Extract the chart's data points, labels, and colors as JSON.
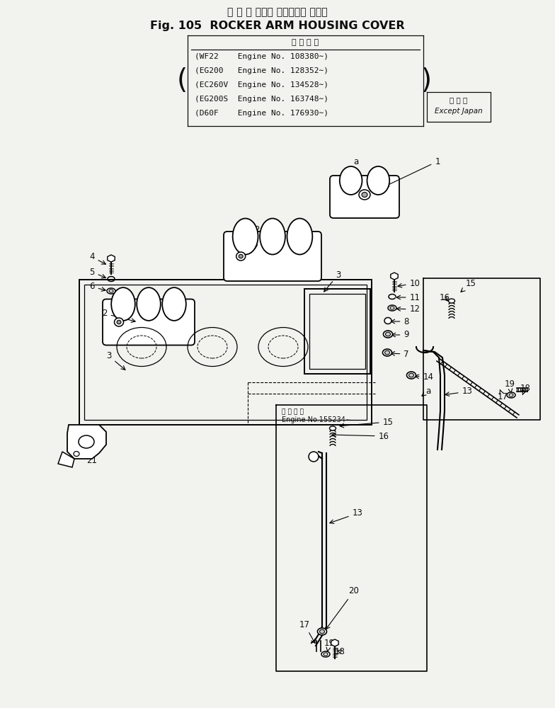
{
  "title_japanese": "ロ ッ カ アーム ハウジング カバー",
  "title_english": "Fig. 105  ROCKER ARM HOUSING COVER",
  "bg_color": "#f2f2ee",
  "text_color": "#0d0d0d",
  "line_color": "#0d0d0d",
  "app_header": "適 用 号 簿",
  "app_lines": [
    "(WF22    Engine No. 108380∼)",
    "(EG200   Engine No. 128352∼)",
    "(EC260V  Engine No. 134528∼)",
    "(EG200S  Engine No. 163748∼)",
    "(D60F    Engine No. 176930∼)"
  ],
  "except_japan_line1": "海 外 向",
  "except_japan_line2": "Except Japan",
  "sub_label1": "適 用 号 簿",
  "sub_label2": "Engine No.155234∼",
  "fig_width": 7.84,
  "fig_height": 10.0,
  "dpi": 100
}
